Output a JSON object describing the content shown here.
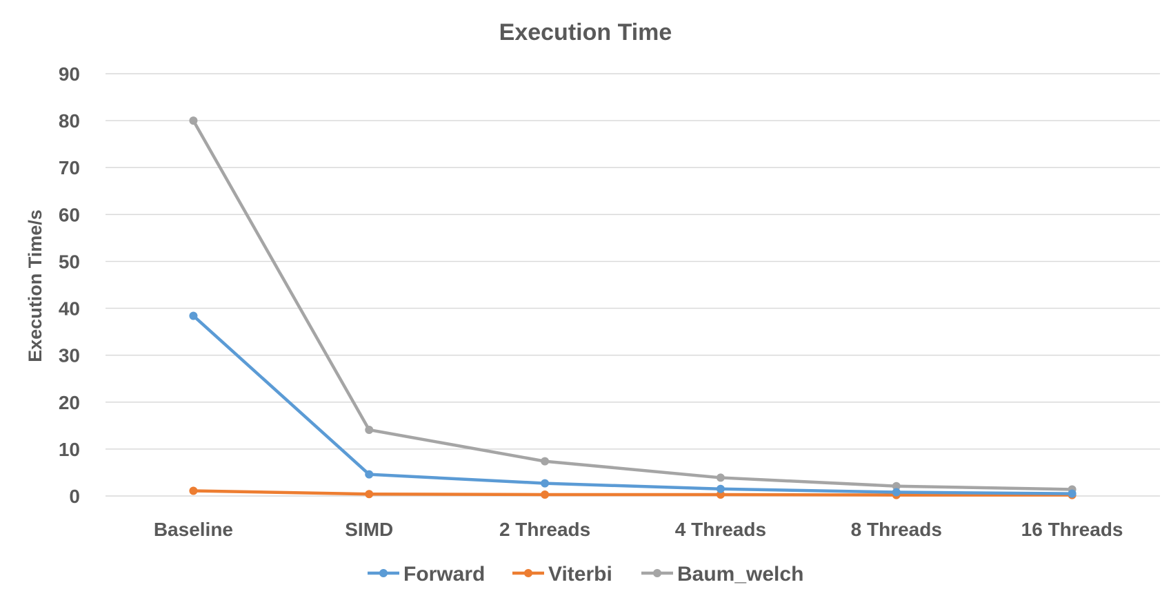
{
  "chart_data": {
    "type": "line",
    "title": "Execution Time",
    "xlabel": "",
    "ylabel": "Execution Time/s",
    "ylim": [
      0,
      90
    ],
    "yticks": [
      0,
      10,
      20,
      30,
      40,
      50,
      60,
      70,
      80,
      90
    ],
    "categories": [
      "Baseline",
      "SIMD",
      "2 Threads",
      "4 Threads",
      "8 Threads",
      "16 Threads"
    ],
    "grid": true,
    "legend_position": "bottom",
    "series": [
      {
        "name": "Forward",
        "color": "#5b9bd5",
        "values": [
          38.4,
          4.6,
          2.7,
          1.5,
          0.8,
          0.5
        ]
      },
      {
        "name": "Viterbi",
        "color": "#ed7d31",
        "values": [
          1.1,
          0.4,
          0.3,
          0.3,
          0.2,
          0.2
        ]
      },
      {
        "name": "Baum_welch",
        "color": "#a5a5a5",
        "values": [
          80.0,
          14.1,
          7.4,
          3.9,
          2.1,
          1.4
        ]
      }
    ]
  }
}
